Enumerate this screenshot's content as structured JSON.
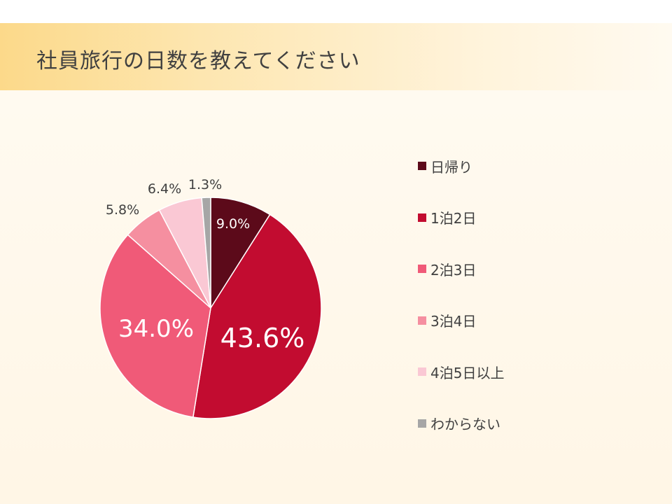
{
  "title": "社員旅行の日数を教えてください",
  "chart_data": {
    "type": "pie",
    "title": "社員旅行の日数を教えてください",
    "slices": [
      {
        "label": "日帰り",
        "value": 9.0,
        "display": "9.0%",
        "color": "#5c0a1a"
      },
      {
        "label": "1泊2日",
        "value": 43.6,
        "display": "43.6%",
        "color": "#c20c30"
      },
      {
        "label": "2泊3日",
        "value": 34.0,
        "display": "34.0%",
        "color": "#f05a78"
      },
      {
        "label": "3泊4日",
        "value": 5.8,
        "display": "5.8%",
        "color": "#f58fa0"
      },
      {
        "label": "4泊5日以上",
        "value": 6.4,
        "display": "6.4%",
        "color": "#fac8d4"
      },
      {
        "label": "わからない",
        "value": 1.3,
        "display": "1.3%",
        "color": "#a6a6a6"
      }
    ],
    "legend_position": "right"
  }
}
